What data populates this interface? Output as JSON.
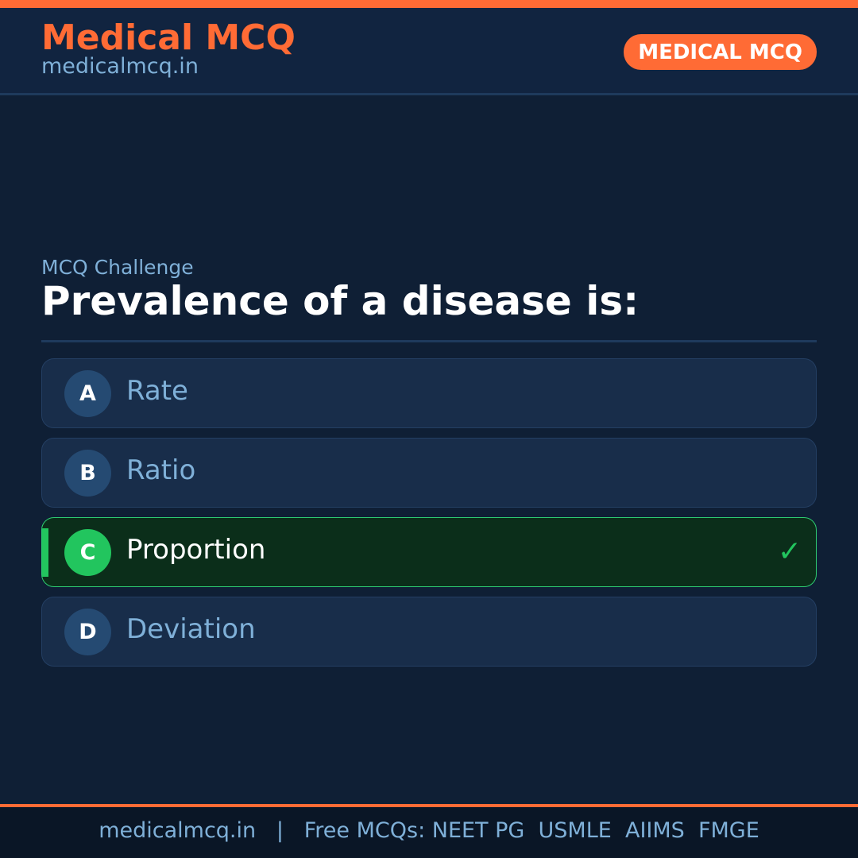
{
  "header": {
    "brand": "Medical MCQ",
    "site": "medicalmcq.in",
    "badge": "MEDICAL MCQ"
  },
  "question": {
    "eyebrow": "MCQ Challenge",
    "text": "Prevalence of a disease is:"
  },
  "options": [
    {
      "letter": "A",
      "label": "Rate"
    },
    {
      "letter": "B",
      "label": "Ratio"
    },
    {
      "letter": "C",
      "label": "Proportion",
      "correct": true,
      "icon": "check-icon"
    },
    {
      "letter": "D",
      "label": "Deviation"
    }
  ],
  "footer": {
    "text": "medicalmcq.in   |   Free MCQs: NEET PG  USMLE  AIIMS  FMGE"
  },
  "colors": {
    "accent": "#ff6b35",
    "correct": "#22c55e",
    "background": "#0f1f35"
  }
}
